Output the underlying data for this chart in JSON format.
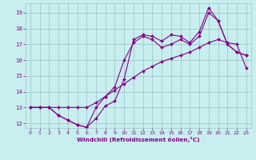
{
  "xlabel": "Windchill (Refroidissement éolien,°C)",
  "background_color": "#c8eef0",
  "grid_color": "#a0c8c8",
  "line_color": "#880088",
  "xlim": [
    -0.5,
    23.5
  ],
  "ylim": [
    11.7,
    19.6
  ],
  "xticks": [
    0,
    1,
    2,
    3,
    4,
    5,
    6,
    7,
    8,
    9,
    10,
    11,
    12,
    13,
    14,
    15,
    16,
    17,
    18,
    19,
    20,
    21,
    22,
    23
  ],
  "yticks": [
    12,
    13,
    14,
    15,
    16,
    17,
    18,
    19
  ],
  "lines": [
    {
      "x": [
        0,
        1,
        2,
        3,
        4,
        5,
        6,
        7,
        8,
        9,
        10,
        11,
        12,
        13,
        14,
        15,
        16,
        17,
        18,
        19,
        20,
        21,
        22,
        23
      ],
      "y": [
        13,
        13,
        13,
        12.5,
        12.2,
        11.9,
        11.75,
        12.3,
        13.1,
        13.4,
        14.8,
        17.3,
        17.6,
        17.5,
        17.2,
        17.6,
        17.5,
        17.1,
        17.8,
        19.3,
        18.5,
        17.0,
        16.5,
        16.3
      ]
    },
    {
      "x": [
        0,
        1,
        2,
        3,
        4,
        5,
        6,
        7,
        8,
        9,
        10,
        11,
        12,
        13,
        14,
        15,
        16,
        17,
        18,
        19,
        20,
        21,
        22,
        23
      ],
      "y": [
        13,
        13,
        13,
        13.0,
        13.0,
        13.0,
        13.0,
        13.3,
        13.7,
        14.1,
        14.5,
        14.9,
        15.3,
        15.6,
        15.9,
        16.1,
        16.3,
        16.5,
        16.8,
        17.1,
        17.3,
        17.1,
        17.0,
        15.5
      ]
    },
    {
      "x": [
        0,
        1,
        2,
        3,
        4,
        5,
        6,
        7,
        8,
        9,
        10,
        11,
        12,
        13,
        14,
        15,
        16,
        17,
        18,
        19,
        20,
        21,
        22,
        23
      ],
      "y": [
        13,
        13,
        13,
        12.5,
        12.2,
        11.9,
        11.75,
        13.0,
        13.7,
        14.3,
        16.0,
        17.1,
        17.5,
        17.3,
        16.8,
        17.0,
        17.3,
        17.0,
        17.5,
        19.0,
        18.5,
        17.0,
        16.5,
        16.3
      ]
    }
  ]
}
